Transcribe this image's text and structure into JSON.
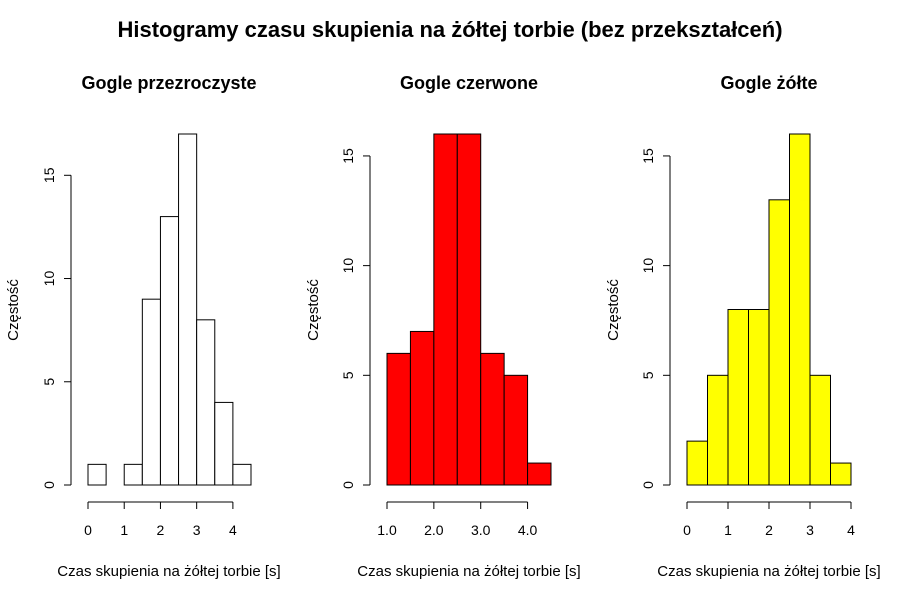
{
  "title": "Histogramy czasu skupienia na żółtej torbie (bez przekształceń)",
  "chart_data": [
    {
      "type": "bar",
      "title": "Gogle przezroczyste",
      "xlabel": "Czas skupienia na żółtej torbie [s]",
      "ylabel": "Częstość",
      "bar_color": "#ffffff",
      "bins": [
        [
          0,
          0.5
        ],
        [
          0.5,
          1.0
        ],
        [
          1.0,
          1.5
        ],
        [
          1.5,
          2.0
        ],
        [
          2.0,
          2.5
        ],
        [
          2.5,
          3.0
        ],
        [
          3.0,
          3.5
        ],
        [
          3.5,
          4.0
        ],
        [
          4.0,
          4.5
        ]
      ],
      "values": [
        1,
        0,
        1,
        9,
        13,
        17,
        8,
        4,
        1
      ],
      "xlim": [
        0,
        4.5
      ],
      "ylim": [
        0,
        17
      ],
      "xticks": [
        0,
        1,
        2,
        3,
        4
      ],
      "xtick_labels": [
        "0",
        "1",
        "2",
        "3",
        "4"
      ],
      "yticks": [
        0,
        5,
        10,
        15
      ],
      "ytick_labels": [
        "0",
        "5",
        "10",
        "15"
      ],
      "grid": false,
      "legend": "none"
    },
    {
      "type": "bar",
      "title": "Gogle czerwone",
      "xlabel": "Czas skupienia na żółtej torbie [s]",
      "ylabel": "Częstość",
      "bar_color": "#ff0000",
      "bins": [
        [
          1.0,
          1.5
        ],
        [
          1.5,
          2.0
        ],
        [
          2.0,
          2.5
        ],
        [
          2.5,
          3.0
        ],
        [
          3.0,
          3.5
        ],
        [
          3.5,
          4.0
        ],
        [
          4.0,
          4.5
        ]
      ],
      "values": [
        6,
        7,
        16,
        16,
        6,
        5,
        1
      ],
      "xlim": [
        1.0,
        4.5
      ],
      "ylim": [
        0,
        16
      ],
      "xticks": [
        1.0,
        2.0,
        3.0,
        4.0
      ],
      "xtick_labels": [
        "1.0",
        "2.0",
        "3.0",
        "4.0"
      ],
      "yticks": [
        0,
        5,
        10,
        15
      ],
      "ytick_labels": [
        "0",
        "5",
        "10",
        "15"
      ],
      "grid": false,
      "legend": "none"
    },
    {
      "type": "bar",
      "title": "Gogle żółte",
      "xlabel": "Czas skupienia na żółtej torbie [s]",
      "ylabel": "Częstość",
      "bar_color": "#ffff00",
      "bins": [
        [
          0,
          0.5
        ],
        [
          0.5,
          1.0
        ],
        [
          1.0,
          1.5
        ],
        [
          1.5,
          2.0
        ],
        [
          2.0,
          2.5
        ],
        [
          2.5,
          3.0
        ],
        [
          3.0,
          3.5
        ],
        [
          3.5,
          4.0
        ]
      ],
      "values": [
        2,
        5,
        8,
        8,
        13,
        16,
        5,
        1
      ],
      "xlim": [
        0,
        4.0
      ],
      "ylim": [
        0,
        16
      ],
      "xticks": [
        0,
        1,
        2,
        3,
        4
      ],
      "xtick_labels": [
        "0",
        "1",
        "2",
        "3",
        "4"
      ],
      "yticks": [
        0,
        5,
        10,
        15
      ],
      "ytick_labels": [
        "0",
        "5",
        "10",
        "15"
      ],
      "grid": false,
      "legend": "none"
    }
  ]
}
